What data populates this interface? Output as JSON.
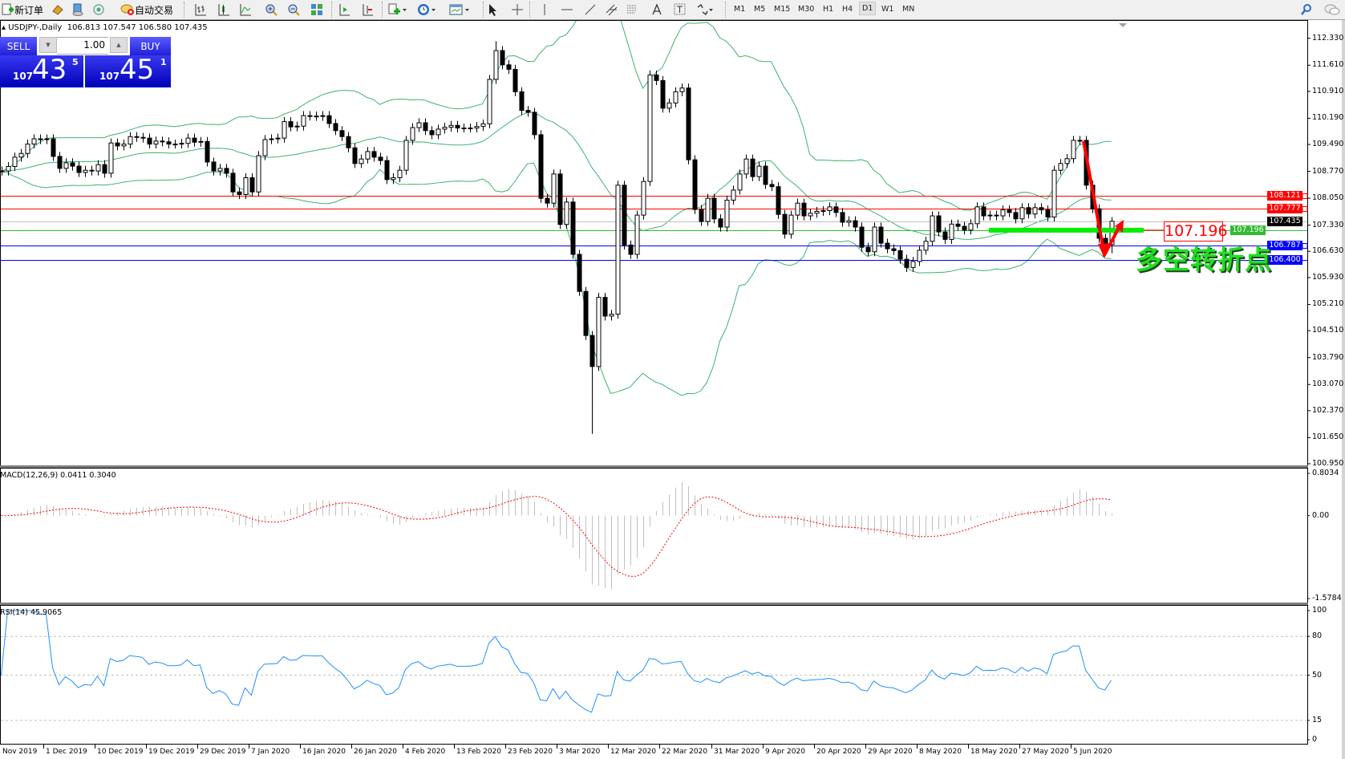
{
  "toolbar": {
    "new_order_label": "新订单",
    "auto_trading_label": "自动交易",
    "icons": [
      "new-order-icon",
      "market-watch-icon",
      "navigator-icon",
      "signals-icon",
      "auto-trading-icon",
      "bar-chart-icon",
      "candlestick-icon",
      "line-chart-icon",
      "zoom-in-icon",
      "zoom-out-icon",
      "tile-windows-icon",
      "auto-scroll-icon",
      "chart-shift-icon",
      "indicators-icon",
      "periods-icon",
      "templates-icon",
      "cursor-icon",
      "crosshair-icon",
      "vertical-line-icon",
      "horizontal-line-icon",
      "trendline-icon",
      "equidistant-channel-icon",
      "fibonacci-icon",
      "text-icon",
      "text-label-icon",
      "arrows-icon",
      "search-icon",
      "chat-icon"
    ],
    "timeframes": [
      "M1",
      "M5",
      "M15",
      "M30",
      "H1",
      "H4",
      "D1",
      "W1",
      "MN"
    ],
    "active_timeframe": "D1"
  },
  "chart": {
    "symbol_header": "USDJPY-,Daily",
    "ohlc_header": "106.813 107.547 106.580 107.435"
  },
  "trade_panel": {
    "sell_label": "SELL",
    "buy_label": "BUY",
    "lot": "1.00",
    "sell_price": {
      "prefix": "107",
      "big": "43",
      "sup": "5"
    },
    "buy_price": {
      "prefix": "107",
      "big": "45",
      "sup": "1"
    },
    "color": "#2020d8"
  },
  "chart_data": {
    "type": "candlestick",
    "symbol": "USDJPY",
    "timeframe": "Daily",
    "last_bar": {
      "open": 106.813,
      "high": 107.547,
      "low": 106.58,
      "close": 107.435
    },
    "closes": [
      108.78,
      108.9,
      109.15,
      109.25,
      109.5,
      109.64,
      109.62,
      109.64,
      109.17,
      108.85,
      109.0,
      108.91,
      108.74,
      108.8,
      108.78,
      108.95,
      108.72,
      109.53,
      109.45,
      109.5,
      109.7,
      109.68,
      109.66,
      109.5,
      109.58,
      109.56,
      109.5,
      109.5,
      109.52,
      109.66,
      109.55,
      109.57,
      109.02,
      108.78,
      108.85,
      108.72,
      108.22,
      108.15,
      108.6,
      108.22,
      109.19,
      109.62,
      109.64,
      109.66,
      110.1,
      109.96,
      109.98,
      110.26,
      110.25,
      110.24,
      110.26,
      110.05,
      109.86,
      109.7,
      109.4,
      108.98,
      109.1,
      109.3,
      109.15,
      109.06,
      108.55,
      108.6,
      108.8,
      109.6,
      109.94,
      110.07,
      109.86,
      109.75,
      109.9,
      109.95,
      110.0,
      109.93,
      109.93,
      109.93,
      109.97,
      110.04,
      111.23,
      112.0,
      111.62,
      111.5,
      110.9,
      110.4,
      110.35,
      109.75,
      108.05,
      107.92,
      108.7,
      107.35,
      107.95,
      106.55,
      105.56,
      104.38,
      103.55,
      105.4,
      104.9,
      104.95,
      108.4,
      106.8,
      106.55,
      107.6,
      108.5,
      111.35,
      111.2,
      110.46,
      110.6,
      110.9,
      111.0,
      109.08,
      107.75,
      107.43,
      108.05,
      107.5,
      107.28,
      108.0,
      108.27,
      108.7,
      109.1,
      108.63,
      108.91,
      108.42,
      108.36,
      107.62,
      107.09,
      107.6,
      107.92,
      107.58,
      107.65,
      107.7,
      107.72,
      107.82,
      107.67,
      107.41,
      107.45,
      107.28,
      106.74,
      106.62,
      107.28,
      106.85,
      106.7,
      106.65,
      106.42,
      106.2,
      106.36,
      106.66,
      106.9,
      107.58,
      107.15,
      106.95,
      107.36,
      107.3,
      107.2,
      107.37,
      107.82,
      107.58,
      107.6,
      107.58,
      107.74,
      107.67,
      107.5,
      107.8,
      107.63,
      107.8,
      107.74,
      107.55,
      108.8,
      108.98,
      109.11,
      109.6,
      109.6,
      108.4,
      107.77,
      106.98,
      106.76,
      107.435
    ],
    "extreme_wicks": [
      {
        "bar": 92,
        "low": 101.75
      },
      {
        "bar": 77,
        "high": 112.25
      }
    ],
    "price_axis": {
      "ylim": [
        100.95,
        112.33
      ],
      "ticks": [
        "112.330",
        "111.610",
        "110.910",
        "110.190",
        "109.490",
        "108.770",
        "108.050",
        "107.330",
        "106.630",
        "105.930",
        "105.210",
        "104.510",
        "103.790",
        "103.070",
        "102.370",
        "101.650",
        "100.950"
      ]
    },
    "date_labels": [
      "Nov 2019",
      "1 Dec 2019",
      "10 Dec 2019",
      "19 Dec 2019",
      "29 Dec 2019",
      "7 Jan 2020",
      "16 Jan 2020",
      "26 Jan 2020",
      "4 Feb 2020",
      "13 Feb 2020",
      "23 Feb 2020",
      "3 Mar 2020",
      "12 Mar 2020",
      "22 Mar 2020",
      "31 Mar 2020",
      "9 Apr 2020",
      "20 Apr 2020",
      "29 Apr 2020",
      "8 May 2020",
      "18 May 2020",
      "27 May 2020",
      "5 Jun 2020"
    ],
    "horizontal_lines": [
      {
        "price": "108.121",
        "color": "#ff0000",
        "anchor": true
      },
      {
        "price": "107.777",
        "color": "#ff0000",
        "anchor": true
      },
      {
        "price": "107.435",
        "color": "#000000",
        "line_color": "#c0c0c0",
        "anchor": false
      },
      {
        "price": "107.196",
        "color": "#33bb33",
        "anchor": false
      },
      {
        "price": "106.787",
        "color": "#0000ff",
        "anchor": true
      },
      {
        "price": "106.400",
        "color": "#0000ff",
        "anchor": false
      }
    ],
    "overlay": "Bollinger Bands",
    "band_color": "#3cb371",
    "candle_bull": "#ffffff",
    "candle_bear": "#000000"
  },
  "annotations": {
    "price_tag": "107.196",
    "pivot_text": "多空转折点",
    "arrow_color": "#ff0000",
    "bar_color": "#00ee00"
  },
  "macd": {
    "label": "MACD(12,26,9) 0.0411 0.3040",
    "axis": [
      "0.8034",
      "0.00",
      "-1.5784"
    ],
    "range": [
      -1.5784,
      0.8034
    ],
    "hist_color": "#c0c0c0",
    "signal_color": "#ff0000"
  },
  "rsi": {
    "label": "RSI(14) 45.9065",
    "axis": [
      "100",
      "80",
      "50",
      "15",
      "0"
    ],
    "levels": [
      80,
      50,
      15
    ],
    "color": "#1e90ff"
  }
}
